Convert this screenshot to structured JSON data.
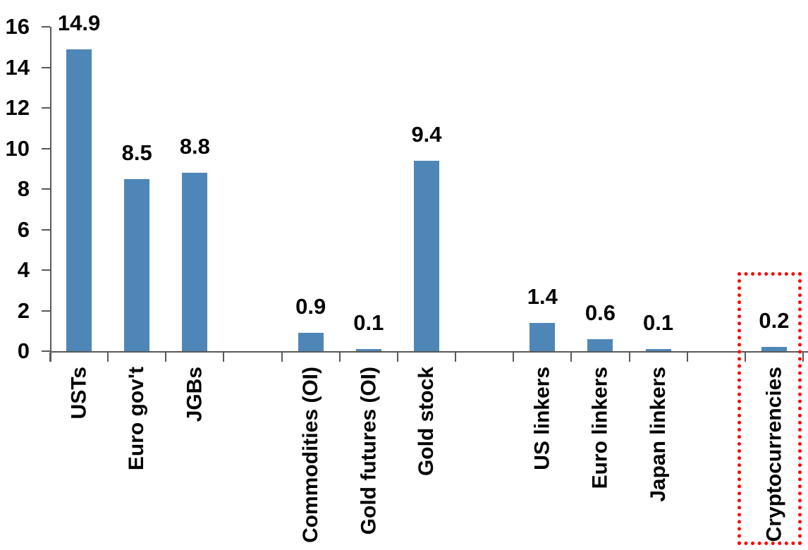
{
  "chart_data": {
    "type": "bar",
    "title": "",
    "categories": [
      "USTs",
      "Euro gov't",
      "JGBs",
      "Commodities (OI)",
      "Gold futures (OI)",
      "Gold stock",
      "US linkers",
      "Euro linkers",
      "Japan linkers",
      "Cryptocurrencies"
    ],
    "values": [
      14.9,
      8.5,
      8.8,
      0.9,
      0.1,
      9.4,
      1.4,
      0.6,
      0.1,
      0.2
    ],
    "value_label_decimals": 1,
    "slots": [
      0,
      1,
      2,
      4,
      5,
      6,
      8,
      9,
      10,
      12
    ],
    "n_slots": 13,
    "xlabel": "",
    "ylabel": "",
    "y_axis": {
      "min": 0,
      "max": 16,
      "step": 2,
      "tick_labels": [
        "0",
        "2",
        "4",
        "6",
        "8",
        "10",
        "12",
        "14",
        "16"
      ]
    },
    "grid": "off",
    "legend": "none",
    "bar_color": "#4E86B8",
    "axis_color": "#595959",
    "text_color": "#000000",
    "highlight": {
      "target": "Cryptocurrencies",
      "style": "dotted-box",
      "color": "#FF0000"
    }
  }
}
